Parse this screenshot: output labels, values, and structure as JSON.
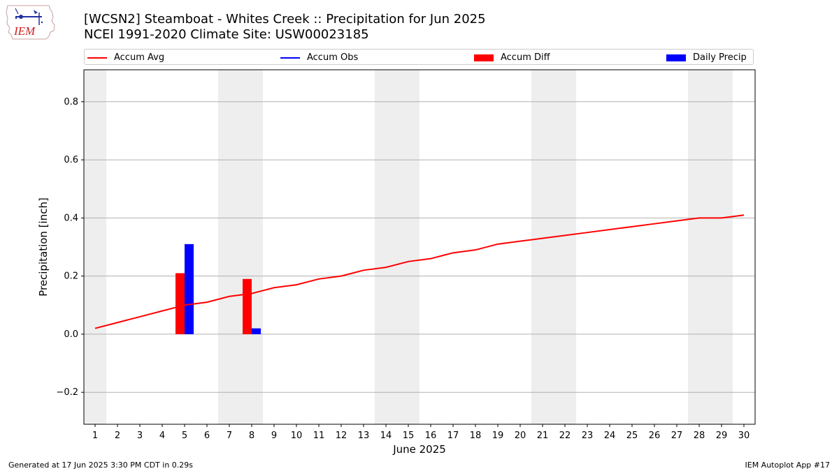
{
  "title_line1": "[WCSN2] Steamboat - Whites Creek :: Precipitation for Jun 2025",
  "title_line2": "NCEI 1991-2020 Climate Site: USW00023185",
  "logo_text": "IEM",
  "footer_left": "Generated at 17 Jun 2025 3:30 PM CDT in 0.29s",
  "footer_right": "IEM Autoplot App #17",
  "legend": [
    {
      "label": "Accum Avg",
      "kind": "line",
      "color": "#ff0000"
    },
    {
      "label": "Accum Obs",
      "kind": "line",
      "color": "#0000ff"
    },
    {
      "label": "Accum Diff",
      "kind": "box",
      "color": "#ff0000"
    },
    {
      "label": "Daily Precip",
      "kind": "box",
      "color": "#0000ff"
    }
  ],
  "chart_data": {
    "type": "bar",
    "xlabel": "June 2025",
    "ylabel": "Precipitation [inch]",
    "x": [
      1,
      2,
      3,
      4,
      5,
      6,
      7,
      8,
      9,
      10,
      11,
      12,
      13,
      14,
      15,
      16,
      17,
      18,
      19,
      20,
      21,
      22,
      23,
      24,
      25,
      26,
      27,
      28,
      29,
      30
    ],
    "xlim": [
      0.5,
      30.5
    ],
    "ylim": [
      -0.31,
      0.91
    ],
    "yticks": [
      -0.2,
      0.0,
      0.2,
      0.4,
      0.6,
      0.8
    ],
    "ytick_labels": [
      "−0.2",
      "0.0",
      "0.2",
      "0.4",
      "0.6",
      "0.8"
    ],
    "grid": "horizontal",
    "weekend_shading": [
      [
        0.5,
        1.5
      ],
      [
        6.5,
        8.5
      ],
      [
        13.5,
        15.5
      ],
      [
        20.5,
        22.5
      ],
      [
        27.5,
        29.5
      ]
    ],
    "series": [
      {
        "name": "Accum Avg",
        "kind": "line",
        "color": "#ff0000",
        "values": [
          0.02,
          0.04,
          0.06,
          0.08,
          0.1,
          0.11,
          0.13,
          0.14,
          0.16,
          0.17,
          0.19,
          0.2,
          0.22,
          0.23,
          0.25,
          0.26,
          0.28,
          0.29,
          0.31,
          0.32,
          0.33,
          0.34,
          0.35,
          0.36,
          0.37,
          0.38,
          0.39,
          0.4,
          0.4,
          0.41
        ]
      },
      {
        "name": "Accum Diff",
        "kind": "bar",
        "color": "#ff0000",
        "points": [
          {
            "x": 5,
            "value": 0.21
          },
          {
            "x": 8,
            "value": 0.19
          }
        ]
      },
      {
        "name": "Daily Precip",
        "kind": "bar",
        "color": "#0000ff",
        "points": [
          {
            "x": 5,
            "value": 0.31
          },
          {
            "x": 8,
            "value": 0.02
          }
        ]
      }
    ]
  }
}
